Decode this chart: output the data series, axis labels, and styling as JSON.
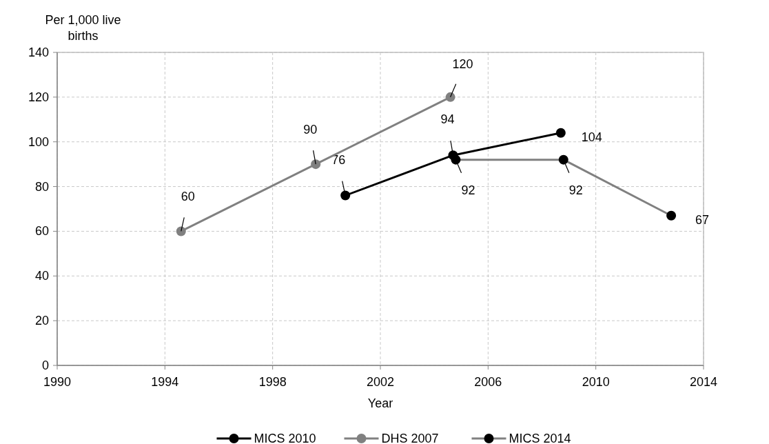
{
  "chart_data": {
    "type": "line",
    "xlabel": "Year",
    "ylabel": "Per 1,000 live births",
    "xlim": [
      1990,
      2014
    ],
    "xticks": [
      1990,
      1994,
      1998,
      2002,
      2006,
      2010,
      2014
    ],
    "ylim": [
      0,
      140
    ],
    "yticks": [
      0,
      20,
      40,
      60,
      80,
      100,
      120,
      140
    ],
    "grid": true,
    "legend": "bottom",
    "marker": "circle",
    "data_labels": true,
    "series": [
      {
        "name": "MICS 2010",
        "color": "#000000",
        "colors": [
          "#000000",
          "#000000",
          "#000000"
        ],
        "x": [
          2000.7,
          2004.7,
          2008.7
        ],
        "values": [
          76,
          94,
          104
        ]
      },
      {
        "name": "DHS 2007",
        "color": "#808080",
        "colors": [
          "#808080",
          "#808080",
          "#808080"
        ],
        "x": [
          1994.6,
          1999.6,
          2004.6
        ],
        "values": [
          60,
          90,
          120
        ]
      },
      {
        "name": "MICS 2014",
        "color": "#808080",
        "colors": [
          "#000000",
          "#000000",
          "#000000"
        ],
        "x": [
          2004.8,
          2008.8,
          2012.8
        ],
        "values": [
          92,
          92,
          67
        ]
      }
    ]
  }
}
